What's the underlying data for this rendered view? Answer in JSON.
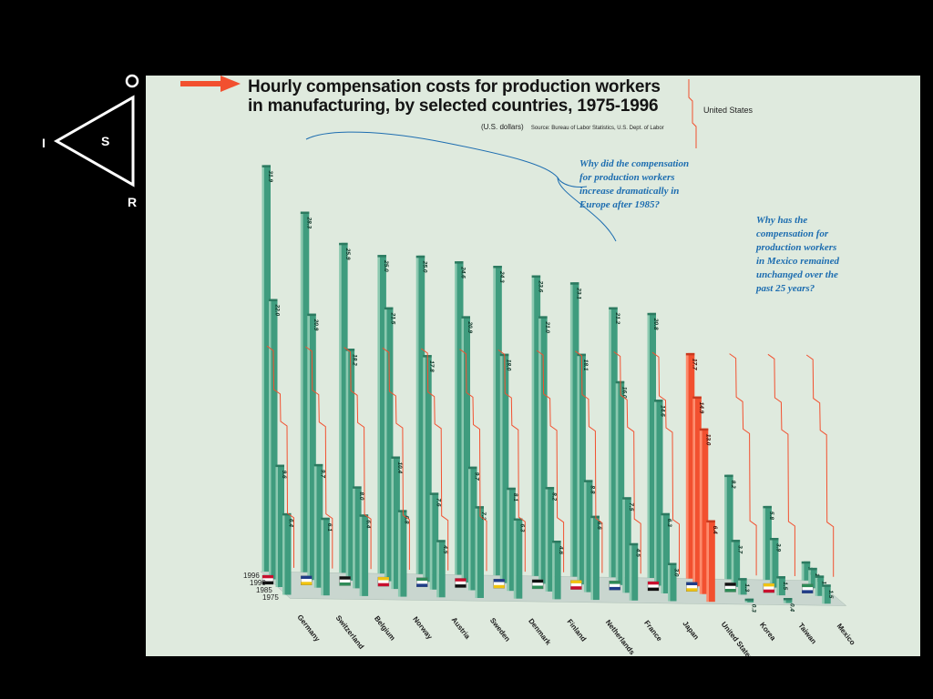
{
  "slide": {
    "triangle_letters": {
      "top": "O",
      "left": "I",
      "center": "S",
      "bottom": "R"
    }
  },
  "chart_data": {
    "type": "bar",
    "title_line1": "Hourly compensation costs for production workers",
    "title_line2": "in manufacturing, by selected countries, 1975-1996",
    "units": "(U.S. dollars)",
    "source": "Source: Bureau of Labor Statistics, U.S. Dept. of Labor",
    "legend_label": "United States",
    "years": [
      "1996",
      "1990",
      "1985",
      "1975"
    ],
    "questions": [
      "Why did the compensation",
      "for production workers",
      "increase dramatically in",
      "Europe after 1985?"
    ],
    "questions2": [
      "Why has the",
      "compensation for",
      "production workers",
      "in Mexico remained",
      "unchanged over the",
      "past 25 years?"
    ],
    "countries": [
      {
        "name": "Germany",
        "values": [
          31.9,
          22.0,
          9.6,
          6.4
        ]
      },
      {
        "name": "Switzerland",
        "values": [
          28.3,
          20.9,
          9.7,
          6.1
        ]
      },
      {
        "name": "Belgium",
        "values": [
          25.9,
          18.2,
          8.0,
          6.4
        ]
      },
      {
        "name": "Norway",
        "values": [
          25.0,
          21.5,
          10.4,
          6.8
        ]
      },
      {
        "name": "Austria",
        "values": [
          25.0,
          17.8,
          7.6,
          4.5
        ]
      },
      {
        "name": "Sweden",
        "values": [
          24.6,
          20.9,
          9.7,
          7.2
        ]
      },
      {
        "name": "Denmark",
        "values": [
          24.3,
          18.0,
          8.1,
          6.3
        ]
      },
      {
        "name": "Finland",
        "values": [
          23.6,
          21.0,
          8.2,
          4.6
        ]
      },
      {
        "name": "Netherlands",
        "values": [
          23.1,
          18.1,
          8.8,
          6.6
        ]
      },
      {
        "name": "France",
        "values": [
          21.2,
          16.0,
          7.5,
          4.5
        ]
      },
      {
        "name": "Japan",
        "values": [
          20.8,
          14.6,
          6.3,
          3.0
        ]
      },
      {
        "name": "United States",
        "values": [
          17.7,
          14.9,
          13.0,
          6.4
        ]
      },
      {
        "name": "Korea",
        "values": [
          8.2,
          3.7,
          1.3,
          0.3
        ]
      },
      {
        "name": "Taiwan",
        "values": [
          5.8,
          3.9,
          1.5,
          0.4
        ]
      },
      {
        "name": "Mexico",
        "values": [
          1.5,
          1.6,
          1.6,
          1.5
        ]
      }
    ],
    "colors": {
      "bar": "#3f9c7e",
      "bar_light": "#8cc9b0",
      "bar_dark": "#2c7a60",
      "highlight": "#f2502f",
      "highlight_light": "#ff8a6a",
      "reference_line": "#f2502f",
      "annotation": "#1d6db0"
    }
  }
}
